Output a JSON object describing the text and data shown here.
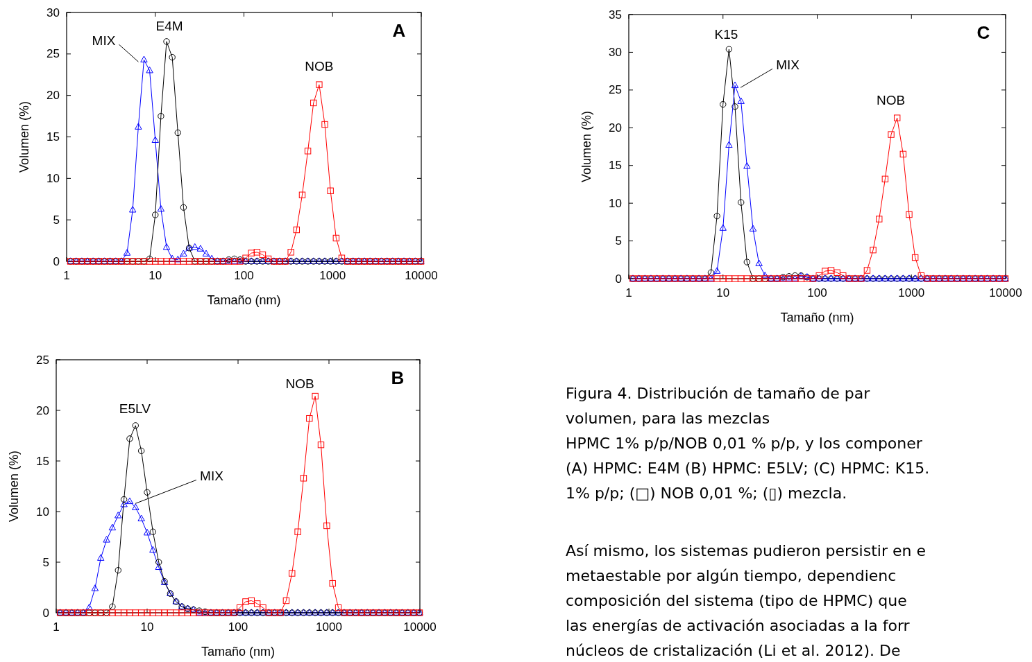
{
  "chart_data": [
    {
      "type": "line",
      "title": "A",
      "xlabel": "Tamaño (nm)",
      "ylabel": "Volumen (%)",
      "log": "x",
      "xlim": [
        1,
        10000
      ],
      "xticks": [
        1,
        10,
        100,
        1000,
        10000
      ],
      "ylim": [
        0,
        30
      ],
      "yticks": [
        0,
        5,
        10,
        15,
        20,
        25,
        30
      ],
      "x": [
        1.106,
        1.281,
        1.484,
        1.718,
        1.99,
        2.305,
        2.669,
        3.091,
        3.58,
        4.145,
        4.801,
        5.56,
        6.439,
        7.456,
        8.635,
        10,
        11.58,
        13.41,
        15.53,
        17.98,
        20.82,
        24.11,
        27.93,
        32.34,
        37.45,
        43.38,
        50.24,
        58.18,
        67.38,
        78.03,
        90.37,
        104.7,
        121.2,
        140.4,
        162.6,
        188.2,
        218,
        252.5,
        292.4,
        338.6,
        392.1,
        454.2,
        525.9,
        609.1,
        705.4,
        816.9,
        946.1,
        1096,
        1269,
        1470,
        1702,
        1971,
        2283,
        2644,
        3062,
        3546,
        4107,
        4756,
        5508,
        6379,
        7388,
        8556,
        9909
      ],
      "series": [
        {
          "name": "MIX",
          "color": "#0000ff",
          "marker": "triangle",
          "values": [
            0,
            0,
            0,
            0,
            0,
            0,
            0,
            0,
            0,
            0,
            1.0,
            6.2,
            16.2,
            24.3,
            23.0,
            14.6,
            6.3,
            1.7,
            0.3,
            0.2,
            0.9,
            1.6,
            1.7,
            1.5,
            0.9,
            0.3,
            0,
            0,
            0,
            0,
            0,
            0,
            0,
            0,
            0,
            0,
            0,
            0,
            0,
            0,
            0,
            0,
            0,
            0,
            0,
            0,
            0,
            0,
            0,
            0,
            0,
            0,
            0,
            0,
            0,
            0,
            0,
            0,
            0,
            0,
            0,
            0,
            0
          ]
        },
        {
          "name": "E4M",
          "color": "#000000",
          "marker": "circle",
          "values": [
            0,
            0,
            0,
            0,
            0,
            0,
            0,
            0,
            0,
            0,
            0,
            0,
            0,
            0,
            0.3,
            5.6,
            17.5,
            26.5,
            24.6,
            15.5,
            6.5,
            1.6,
            0,
            0,
            0,
            0,
            0,
            0,
            0.2,
            0.3,
            0.2,
            0,
            0,
            0,
            0,
            0,
            0,
            0,
            0,
            0,
            0,
            0,
            0,
            0,
            0,
            0,
            0,
            0,
            0,
            0,
            0,
            0,
            0,
            0,
            0,
            0,
            0,
            0,
            0,
            0,
            0,
            0,
            0
          ]
        },
        {
          "name": "NOB",
          "color": "#ff0000",
          "marker": "square",
          "values": [
            0,
            0,
            0,
            0,
            0,
            0,
            0,
            0,
            0,
            0,
            0,
            0,
            0,
            0,
            0,
            0,
            0,
            0,
            0,
            0,
            0,
            0,
            0,
            0,
            0,
            0,
            0,
            0,
            0,
            0,
            0,
            0.4,
            1.0,
            1.1,
            0.8,
            0.3,
            0,
            0,
            0,
            1.1,
            3.8,
            8.0,
            13.3,
            19.1,
            21.3,
            16.5,
            8.5,
            2.8,
            0.4,
            0,
            0,
            0,
            0,
            0,
            0,
            0,
            0,
            0,
            0,
            0,
            0,
            0,
            0
          ]
        }
      ]
    },
    {
      "type": "line",
      "title": "C",
      "xlabel": "Tamaño (nm)",
      "ylabel": "Volumen (%)",
      "log": "x",
      "xlim": [
        1,
        10000
      ],
      "xticks": [
        1,
        10,
        100,
        1000,
        10000
      ],
      "ylim": [
        0,
        35
      ],
      "yticks": [
        0,
        5,
        10,
        15,
        20,
        25,
        30,
        35
      ],
      "x": [
        1.106,
        1.281,
        1.484,
        1.718,
        1.99,
        2.305,
        2.669,
        3.091,
        3.58,
        4.145,
        4.801,
        5.56,
        6.439,
        7.456,
        8.635,
        10,
        11.58,
        13.41,
        15.53,
        17.98,
        20.82,
        24.11,
        27.93,
        32.34,
        37.45,
        43.38,
        50.24,
        58.18,
        67.38,
        78.03,
        90.37,
        104.7,
        121.2,
        140.4,
        162.6,
        188.2,
        218,
        252.5,
        292.4,
        338.6,
        392.1,
        454.2,
        525.9,
        609.1,
        705.4,
        816.9,
        946.1,
        1096,
        1269,
        1470,
        1702,
        1971,
        2283,
        2644,
        3062,
        3546,
        4107,
        4756,
        5508,
        6379,
        7388,
        8556,
        9909
      ],
      "series": [
        {
          "name": "K15",
          "color": "#000000",
          "marker": "circle",
          "values": [
            0,
            0,
            0,
            0,
            0,
            0,
            0,
            0,
            0,
            0,
            0,
            0,
            0,
            0.8,
            8.3,
            23.1,
            30.4,
            22.8,
            10.1,
            2.2,
            0,
            0,
            0,
            0,
            0,
            0.2,
            0.3,
            0.4,
            0.4,
            0.2,
            0,
            0,
            0,
            0,
            0,
            0,
            0,
            0,
            0,
            0,
            0,
            0,
            0,
            0,
            0,
            0,
            0,
            0,
            0,
            0,
            0,
            0,
            0,
            0,
            0,
            0,
            0,
            0,
            0,
            0,
            0,
            0,
            0
          ]
        },
        {
          "name": "MIX",
          "color": "#0000ff",
          "marker": "triangle",
          "values": [
            0,
            0,
            0,
            0,
            0,
            0,
            0,
            0,
            0,
            0,
            0,
            0,
            0,
            0,
            1.0,
            6.7,
            17.7,
            25.6,
            23.5,
            14.9,
            6.6,
            2.0,
            0.4,
            0,
            0,
            0,
            0,
            0,
            0.3,
            0.2,
            0,
            0,
            0,
            0,
            0,
            0,
            0,
            0,
            0,
            0,
            0,
            0,
            0,
            0,
            0,
            0,
            0,
            0,
            0,
            0,
            0,
            0,
            0,
            0,
            0,
            0,
            0,
            0,
            0,
            0,
            0,
            0,
            0
          ]
        },
        {
          "name": "NOB",
          "color": "#ff0000",
          "marker": "square",
          "values": [
            0,
            0,
            0,
            0,
            0,
            0,
            0,
            0,
            0,
            0,
            0,
            0,
            0,
            0,
            0,
            0,
            0,
            0,
            0,
            0,
            0,
            0,
            0,
            0,
            0,
            0,
            0,
            0,
            0,
            0,
            0,
            0.4,
            1.0,
            1.1,
            0.8,
            0.4,
            0,
            0,
            0,
            1.1,
            3.8,
            7.9,
            13.2,
            19.1,
            21.3,
            16.5,
            8.5,
            2.8,
            0.4,
            0,
            0,
            0,
            0,
            0,
            0,
            0,
            0,
            0,
            0,
            0,
            0,
            0,
            0
          ]
        }
      ]
    },
    {
      "type": "line",
      "title": "B",
      "xlabel": "Tamaño (nm)",
      "ylabel": "Volumen (%)",
      "log": "x",
      "xlim": [
        1,
        10000
      ],
      "xticks": [
        1,
        10,
        100,
        1000,
        10000
      ],
      "ylim": [
        0,
        25
      ],
      "yticks": [
        0,
        5,
        10,
        15,
        20,
        25
      ],
      "x": [
        1.106,
        1.281,
        1.484,
        1.718,
        1.99,
        2.305,
        2.669,
        3.091,
        3.58,
        4.145,
        4.801,
        5.56,
        6.439,
        7.456,
        8.635,
        10,
        11.58,
        13.41,
        15.53,
        17.98,
        20.82,
        24.11,
        27.93,
        32.34,
        37.45,
        43.38,
        50.24,
        58.18,
        67.38,
        78.03,
        90.37,
        104.7,
        121.2,
        140.4,
        162.6,
        188.2,
        218,
        252.5,
        292.4,
        338.6,
        392.1,
        454.2,
        525.9,
        609.1,
        705.4,
        816.9,
        946.1,
        1096,
        1269,
        1470,
        1702,
        1971,
        2283,
        2644,
        3062,
        3546,
        4107,
        4756,
        5508,
        6379,
        7388,
        8556,
        9909
      ],
      "series": [
        {
          "name": "MIX",
          "color": "#0000ff",
          "marker": "triangle",
          "values": [
            0,
            0,
            0,
            0,
            0,
            0.5,
            2.4,
            5.4,
            7.2,
            8.4,
            9.6,
            10.7,
            11.0,
            10.4,
            9.3,
            7.9,
            6.2,
            4.5,
            3.0,
            1.9,
            1.1,
            0.6,
            0.4,
            0.3,
            0,
            0,
            0,
            0,
            0,
            0,
            0,
            0,
            0,
            0,
            0,
            0,
            0,
            0,
            0,
            0,
            0,
            0,
            0,
            0,
            0,
            0,
            0,
            0,
            0,
            0,
            0,
            0,
            0,
            0,
            0,
            0,
            0,
            0,
            0,
            0,
            0,
            0,
            0
          ]
        },
        {
          "name": "E5LV",
          "color": "#000000",
          "marker": "circle",
          "values": [
            0,
            0,
            0,
            0,
            0,
            0,
            0,
            0,
            0,
            0.6,
            4.2,
            11.2,
            17.2,
            18.5,
            16.0,
            11.9,
            8.0,
            5.0,
            3.1,
            1.9,
            1.1,
            0.6,
            0.4,
            0.3,
            0.2,
            0.1,
            0,
            0,
            0,
            0,
            0,
            0,
            0,
            0,
            0,
            0,
            0,
            0,
            0,
            0,
            0,
            0,
            0,
            0,
            0,
            0,
            0,
            0,
            0,
            0,
            0,
            0,
            0,
            0,
            0,
            0,
            0,
            0,
            0,
            0,
            0,
            0,
            0
          ]
        },
        {
          "name": "NOB",
          "color": "#ff0000",
          "marker": "square",
          "values": [
            0,
            0,
            0,
            0,
            0,
            0,
            0,
            0,
            0,
            0,
            0,
            0,
            0,
            0,
            0,
            0,
            0,
            0,
            0,
            0,
            0,
            0,
            0,
            0,
            0,
            0,
            0,
            0,
            0,
            0,
            0,
            0.5,
            1.1,
            1.2,
            0.9,
            0.5,
            0,
            0,
            0,
            1.2,
            3.9,
            8.0,
            13.3,
            19.2,
            21.4,
            16.6,
            8.6,
            2.9,
            0.5,
            0,
            0,
            0,
            0,
            0,
            0,
            0,
            0,
            0,
            0,
            0,
            0,
            0,
            0
          ]
        }
      ]
    },
    {
      "type": "other",
      "annotations": [
        "Figura 4. Distribución de tamaño de par",
        "volumen, para las mezclas",
        "HPMC 1% p/p/NOB 0,01 % p/p, y los componer",
        "(A) HPMC: E4M (B) HPMC: E5LV; (C) HPMC: K15.",
        "1% p/p; (□) NOB 0,01 %; (▯) mezcla."
      ]
    },
    {
      "type": "other",
      "annotations": [
        "Así mismo, los sistemas pudieron persistir en e",
        "metaestable por algún tiempo, dependienc",
        "composición del sistema (tipo de HPMC) que",
        "las energías de activación asociadas a la forr",
        "núcleos de cristalización (Li et al. 2012). De"
      ]
    }
  ]
}
